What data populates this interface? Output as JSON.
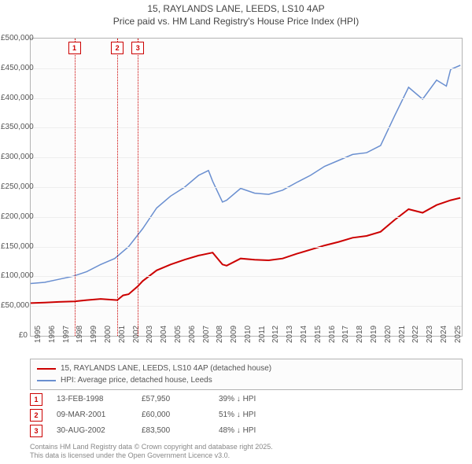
{
  "title_line1": "15, RAYLANDS LANE, LEEDS, LS10 4AP",
  "title_line2": "Price paid vs. HM Land Registry's House Price Index (HPI)",
  "chart": {
    "type": "line",
    "x_min": 1995,
    "x_max": 2025.8,
    "y_min": 0,
    "y_max": 500000,
    "y_ticks": [
      0,
      50000,
      100000,
      150000,
      200000,
      250000,
      300000,
      350000,
      400000,
      450000,
      500000
    ],
    "y_labels": [
      "£0",
      "£50,000",
      "£100,000",
      "£150,000",
      "£200,000",
      "£250,000",
      "£300,000",
      "£350,000",
      "£400,000",
      "£450,000",
      "£500,000"
    ],
    "x_ticks": [
      1995,
      1996,
      1997,
      1998,
      1999,
      2000,
      2001,
      2002,
      2003,
      2004,
      2005,
      2006,
      2007,
      2008,
      2009,
      2010,
      2011,
      2012,
      2013,
      2014,
      2015,
      2016,
      2017,
      2018,
      2019,
      2020,
      2021,
      2022,
      2023,
      2024,
      2025
    ],
    "background_color": "#fcfcfc",
    "grid_color": "#eeeeee",
    "border_color": "#b4b4b4"
  },
  "series": [
    {
      "name": "15, RAYLANDS LANE, LEEDS, LS10 4AP (detached house)",
      "color": "#cc0000",
      "width": 2,
      "points": [
        [
          1995,
          55000
        ],
        [
          1996,
          56000
        ],
        [
          1997,
          57000
        ],
        [
          1998.12,
          57950
        ],
        [
          1999,
          60000
        ],
        [
          2000,
          62000
        ],
        [
          2001.19,
          60000
        ],
        [
          2001.6,
          68000
        ],
        [
          2002,
          70000
        ],
        [
          2002.66,
          83500
        ],
        [
          2003,
          92000
        ],
        [
          2004,
          110000
        ],
        [
          2005,
          120000
        ],
        [
          2006,
          128000
        ],
        [
          2007,
          135000
        ],
        [
          2008,
          140000
        ],
        [
          2008.7,
          120000
        ],
        [
          2009,
          118000
        ],
        [
          2010,
          130000
        ],
        [
          2011,
          128000
        ],
        [
          2012,
          127000
        ],
        [
          2013,
          130000
        ],
        [
          2014,
          138000
        ],
        [
          2015,
          145000
        ],
        [
          2016,
          152000
        ],
        [
          2017,
          158000
        ],
        [
          2018,
          165000
        ],
        [
          2019,
          168000
        ],
        [
          2020,
          175000
        ],
        [
          2021,
          195000
        ],
        [
          2022,
          213000
        ],
        [
          2023,
          207000
        ],
        [
          2024,
          220000
        ],
        [
          2025,
          228000
        ],
        [
          2025.7,
          232000
        ]
      ]
    },
    {
      "name": "HPI: Average price, detached house, Leeds",
      "color": "#6a8fd0",
      "width": 1.5,
      "points": [
        [
          1995,
          88000
        ],
        [
          1996,
          90000
        ],
        [
          1997,
          95000
        ],
        [
          1998,
          100000
        ],
        [
          1999,
          108000
        ],
        [
          2000,
          120000
        ],
        [
          2001,
          130000
        ],
        [
          2002,
          150000
        ],
        [
          2003,
          180000
        ],
        [
          2004,
          215000
        ],
        [
          2005,
          235000
        ],
        [
          2006,
          250000
        ],
        [
          2007,
          270000
        ],
        [
          2007.7,
          278000
        ],
        [
          2008,
          260000
        ],
        [
          2008.7,
          225000
        ],
        [
          2009,
          228000
        ],
        [
          2010,
          248000
        ],
        [
          2011,
          240000
        ],
        [
          2012,
          238000
        ],
        [
          2013,
          245000
        ],
        [
          2014,
          258000
        ],
        [
          2015,
          270000
        ],
        [
          2016,
          285000
        ],
        [
          2017,
          295000
        ],
        [
          2018,
          305000
        ],
        [
          2019,
          308000
        ],
        [
          2020,
          320000
        ],
        [
          2021,
          370000
        ],
        [
          2022,
          418000
        ],
        [
          2023,
          398000
        ],
        [
          2024,
          430000
        ],
        [
          2024.7,
          420000
        ],
        [
          2025,
          448000
        ],
        [
          2025.7,
          455000
        ]
      ]
    }
  ],
  "markers": [
    {
      "n": "1",
      "x": 1998.12
    },
    {
      "n": "2",
      "x": 2001.19
    },
    {
      "n": "3",
      "x": 2002.66
    }
  ],
  "legend": {
    "items": [
      {
        "color": "#cc0000",
        "label": "15, RAYLANDS LANE, LEEDS, LS10 4AP (detached house)"
      },
      {
        "color": "#6a8fd0",
        "label": "HPI: Average price, detached house, Leeds"
      }
    ]
  },
  "sales": [
    {
      "n": "1",
      "date": "13-FEB-1998",
      "price": "£57,950",
      "delta": "39% ↓ HPI"
    },
    {
      "n": "2",
      "date": "09-MAR-2001",
      "price": "£60,000",
      "delta": "51% ↓ HPI"
    },
    {
      "n": "3",
      "date": "30-AUG-2002",
      "price": "£83,500",
      "delta": "48% ↓ HPI"
    }
  ],
  "footer_line1": "Contains HM Land Registry data © Crown copyright and database right 2025.",
  "footer_line2": "This data is licensed under the Open Government Licence v3.0."
}
